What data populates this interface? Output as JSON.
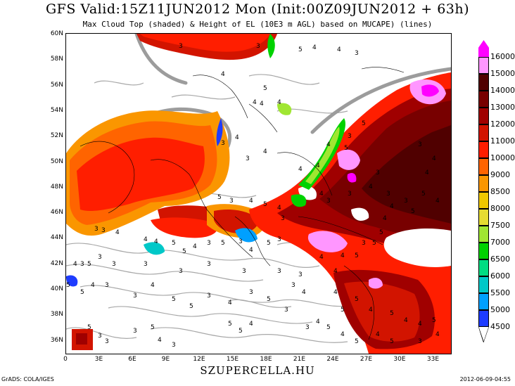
{
  "header": {
    "title": "GFS Valid:15Z11JUN2012 Mon (Init:00Z09JUN2012 + 63h)",
    "subtitle": "Max Cloud Top (shaded) & Height of EL (10E3 m AGL) based on MUCAPE) (lines)"
  },
  "map": {
    "lat_labels": [
      "60N",
      "58N",
      "56N",
      "54N",
      "52N",
      "50N",
      "48N",
      "46N",
      "44N",
      "42N",
      "40N",
      "38N",
      "36N"
    ],
    "lon_labels": [
      "0",
      "3E",
      "6E",
      "9E",
      "12E",
      "15E",
      "18E",
      "21E",
      "24E",
      "27E",
      "30E",
      "33E"
    ],
    "contour_labels": [
      "3",
      "4",
      "5"
    ]
  },
  "colorbar": {
    "levels": [
      "4500",
      "5000",
      "5500",
      "6000",
      "6500",
      "7000",
      "7500",
      "8000",
      "8500",
      "9000",
      "10000",
      "11000",
      "12000",
      "13000",
      "14000",
      "15000",
      "16000"
    ],
    "colors": [
      "#1e3cff",
      "#00a0ff",
      "#00c8c8",
      "#00dc82",
      "#00d200",
      "#a0e632",
      "#e6dc32",
      "#f0c800",
      "#fa9600",
      "#ff6400",
      "#ff1e00",
      "#d21400",
      "#a00000",
      "#780000",
      "#500000",
      "#ff96ff",
      "#ff00ff"
    ]
  },
  "footer": {
    "site": "SZUPERCELLA.HU",
    "left": "GrADS: COLA/IGES",
    "right": "2012-06-09-04:55"
  }
}
